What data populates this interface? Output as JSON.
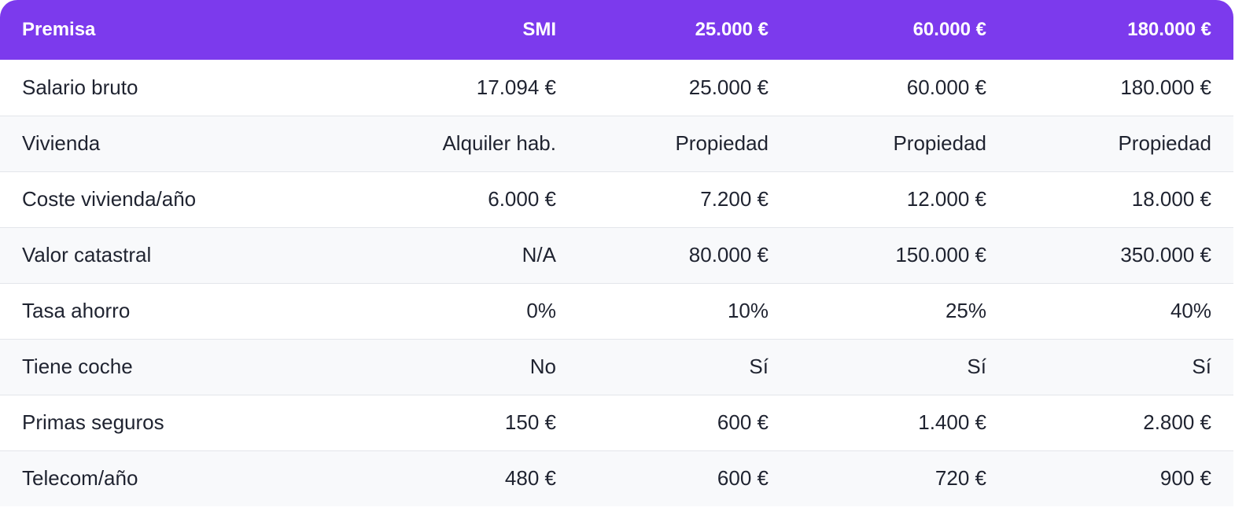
{
  "table": {
    "headers": [
      "Premisa",
      "SMI",
      "25.000 €",
      "60.000 €",
      "180.000 €"
    ],
    "rows": [
      [
        "Salario bruto",
        "17.094 €",
        "25.000 €",
        "60.000 €",
        "180.000 €"
      ],
      [
        "Vivienda",
        "Alquiler hab.",
        "Propiedad",
        "Propiedad",
        "Propiedad"
      ],
      [
        "Coste vivienda/año",
        "6.000 €",
        "7.200 €",
        "12.000 €",
        "18.000 €"
      ],
      [
        "Valor catastral",
        "N/A",
        "80.000 €",
        "150.000 €",
        "350.000 €"
      ],
      [
        "Tasa ahorro",
        "0%",
        "10%",
        "25%",
        "40%"
      ],
      [
        "Tiene coche",
        "No",
        "Sí",
        "Sí",
        "Sí"
      ],
      [
        "Primas seguros",
        "150 €",
        "600 €",
        "1.400 €",
        "2.800 €"
      ],
      [
        "Telecom/año",
        "480 €",
        "600 €",
        "720 €",
        "900 €"
      ]
    ]
  },
  "colors": {
    "header_bg": "#7c3aed",
    "header_text": "#ffffff",
    "alt_row_bg": "#f8f9fb",
    "text": "#1f2330"
  }
}
